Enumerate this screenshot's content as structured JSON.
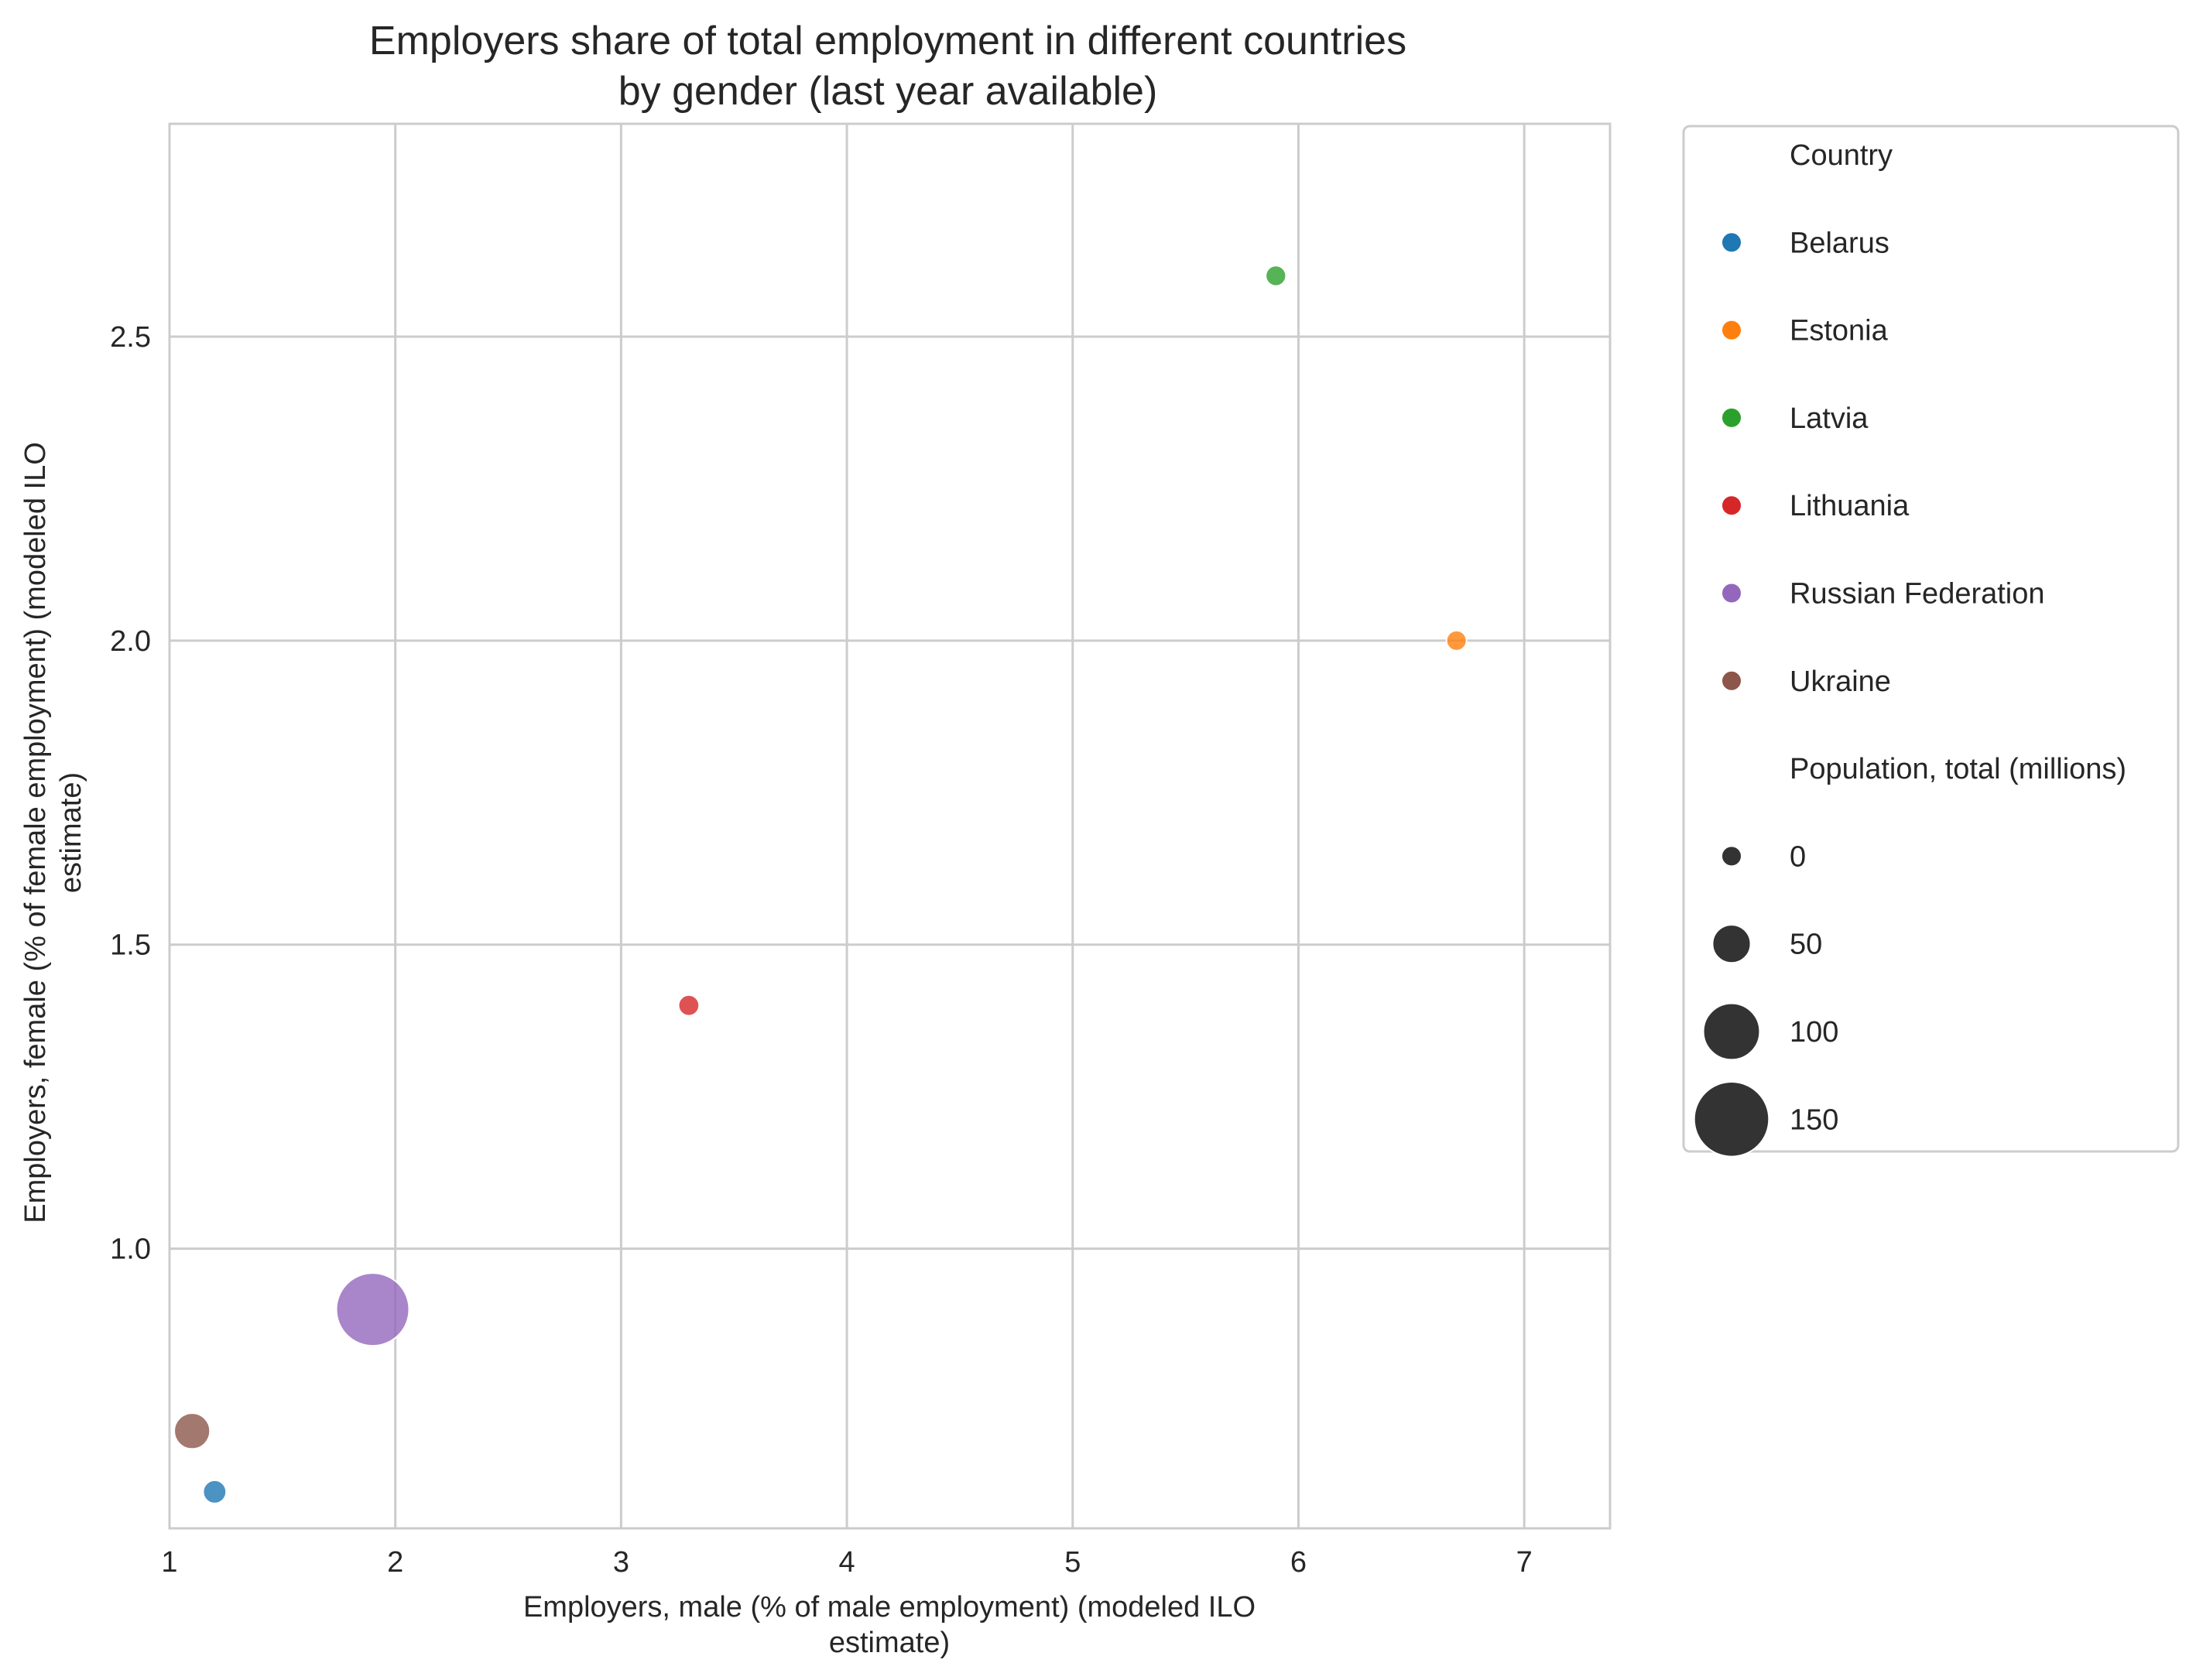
{
  "chart_data": {
    "type": "scatter",
    "title_lines": [
      "Employers share of total employment in different countries",
      "by gender (last year available)"
    ],
    "xlabel_lines": [
      "Employers, male (% of male employment) (modeled ILO",
      "estimate)"
    ],
    "ylabel_lines": [
      "Employers, female (% of female employment) (modeled ILO",
      "estimate)"
    ],
    "xlim": [
      1.0,
      7.38
    ],
    "ylim": [
      0.54,
      2.85
    ],
    "x_ticks": [
      1,
      2,
      3,
      4,
      5,
      6,
      7
    ],
    "y_ticks": [
      1.0,
      1.5,
      2.0,
      2.5
    ],
    "x_tick_labels": [
      "1",
      "2",
      "3",
      "4",
      "5",
      "6",
      "7"
    ],
    "y_tick_labels": [
      "1.0",
      "1.5",
      "2.0",
      "2.5"
    ],
    "grid": true,
    "legend_position": "outside-right",
    "series": [
      {
        "name": "Belarus",
        "color": "#1f77b4",
        "x": 1.2,
        "y": 0.6,
        "size": 9.4
      },
      {
        "name": "Estonia",
        "color": "#ff7f0e",
        "x": 6.7,
        "y": 2.0,
        "size": 1.3
      },
      {
        "name": "Latvia",
        "color": "#2ca02c",
        "x": 5.9,
        "y": 2.6,
        "size": 1.9
      },
      {
        "name": "Lithuania",
        "color": "#d62728",
        "x": 3.3,
        "y": 1.4,
        "size": 2.8
      },
      {
        "name": "Russian Federation",
        "color": "#9467bd",
        "x": 1.9,
        "y": 0.9,
        "size": 144.5
      },
      {
        "name": "Ukraine",
        "color": "#8c564b",
        "x": 1.1,
        "y": 0.7,
        "size": 44.0
      }
    ],
    "legend": {
      "hue_title": "Country",
      "hue_items": [
        "Belarus",
        "Estonia",
        "Latvia",
        "Lithuania",
        "Russian Federation",
        "Ukraine"
      ],
      "size_title": "Population, total (millions)",
      "size_items": [
        {
          "label": "0",
          "value": 0
        },
        {
          "label": "50",
          "value": 50
        },
        {
          "label": "100",
          "value": 100
        },
        {
          "label": "150",
          "value": 150
        }
      ],
      "size_marker_color": "#333333"
    }
  }
}
